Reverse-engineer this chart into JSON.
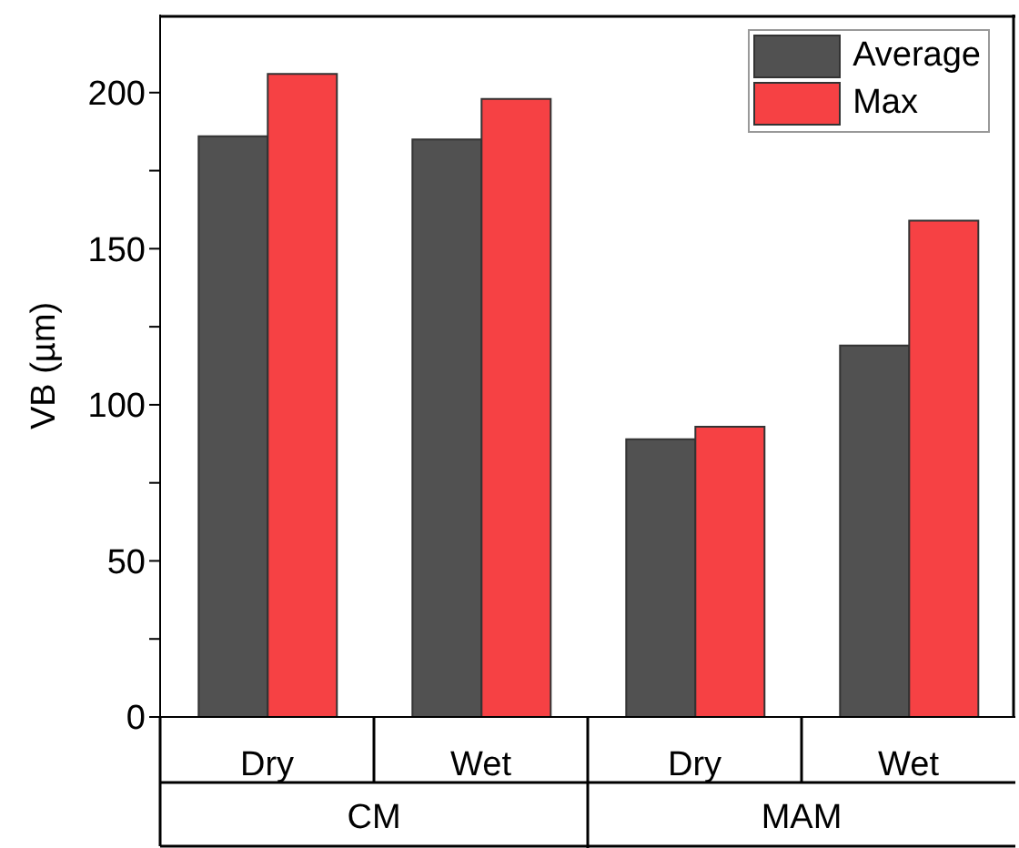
{
  "chart_data": {
    "type": "bar",
    "ylabel": "VB (µm)",
    "categories": [
      "Dry",
      "Wet",
      "Dry",
      "Wet"
    ],
    "series": [
      {
        "name": "Average",
        "color": "#515151",
        "values": [
          186,
          185,
          89,
          119
        ]
      },
      {
        "name": "Max",
        "color": "#f64144",
        "values": [
          206,
          198,
          93,
          159
        ]
      }
    ],
    "ylim": [
      0,
      225
    ],
    "yticks": [
      0,
      {
        "value": 25,
        "label": null
      },
      50,
      {
        "value": 75,
        "label": null
      },
      100,
      {
        "value": 125,
        "label": null
      },
      150,
      {
        "value": 175,
        "label": null
      },
      200
    ],
    "annotations": [
      "CM",
      "MAM"
    ],
    "legend": "top right"
  }
}
